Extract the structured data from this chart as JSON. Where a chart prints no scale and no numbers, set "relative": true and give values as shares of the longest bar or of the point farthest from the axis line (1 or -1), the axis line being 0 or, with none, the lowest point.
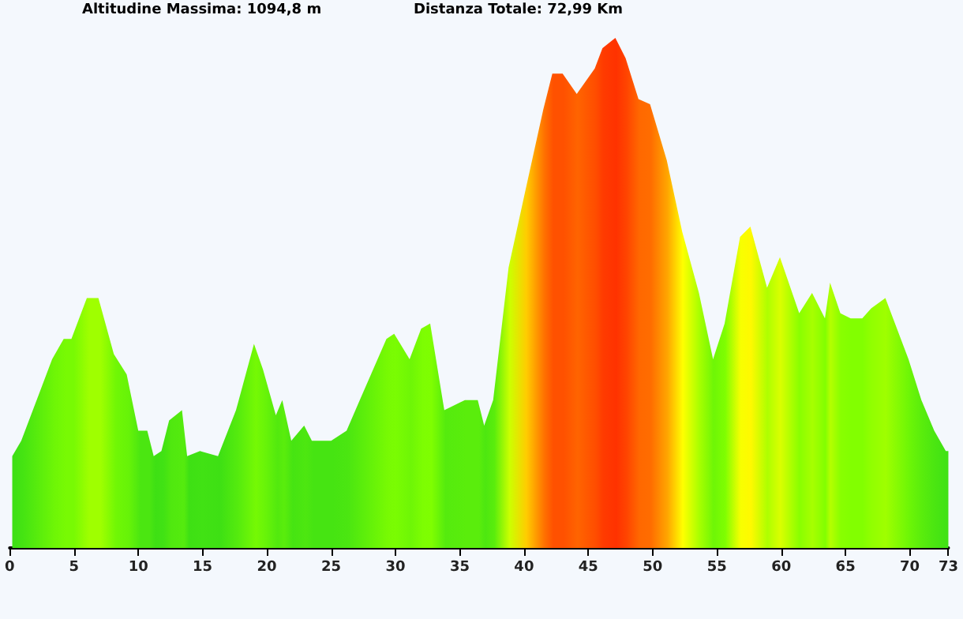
{
  "chart_data": {
    "type": "area",
    "relative": true,
    "annotations": [
      "Altitudine Massima: 1094,8 m",
      "Distanza Totale: 72,99 Km"
    ],
    "x": [
      0.2,
      0.9,
      2.1,
      3.3,
      4.2,
      4.8,
      6.0,
      6.9,
      8.1,
      9.1,
      10.0,
      10.7,
      11.2,
      11.8,
      12.4,
      13.4,
      13.8,
      14.8,
      16.2,
      17.6,
      19.0,
      19.7,
      20.7,
      21.2,
      21.9,
      22.9,
      23.5,
      25.0,
      26.2,
      27.4,
      29.3,
      29.9,
      31.1,
      32.0,
      32.7,
      33.8,
      35.4,
      36.4,
      36.9,
      37.6,
      38.8,
      40.1,
      41.5,
      42.2,
      43.0,
      44.1,
      45.5,
      46.1,
      47.1,
      47.9,
      48.9,
      49.8,
      51.1,
      52.3,
      53.6,
      54.7,
      55.6,
      56.8,
      57.6,
      58.9,
      59.9,
      61.4,
      62.4,
      63.4,
      63.8,
      64.6,
      65.4,
      66.3,
      67.0,
      68.1,
      69.9,
      70.9,
      71.9,
      72.8,
      73.0
    ],
    "series": [
      {
        "values": [
          0.18,
          0.21,
          0.29,
          0.37,
          0.41,
          0.41,
          0.49,
          0.49,
          0.38,
          0.34,
          0.23,
          0.23,
          0.18,
          0.19,
          0.25,
          0.27,
          0.18,
          0.19,
          0.18,
          0.27,
          0.4,
          0.35,
          0.26,
          0.29,
          0.21,
          0.24,
          0.21,
          0.21,
          0.23,
          0.3,
          0.41,
          0.42,
          0.37,
          0.43,
          0.44,
          0.27,
          0.29,
          0.29,
          0.24,
          0.29,
          0.55,
          0.7,
          0.86,
          0.93,
          0.93,
          0.89,
          0.94,
          0.98,
          1.0,
          0.96,
          0.88,
          0.87,
          0.76,
          0.62,
          0.5,
          0.37,
          0.44,
          0.61,
          0.63,
          0.51,
          0.57,
          0.46,
          0.5,
          0.45,
          0.52,
          0.46,
          0.45,
          0.45,
          0.47,
          0.49,
          0.37,
          0.29,
          0.23,
          0.19,
          0.19
        ]
      }
    ],
    "xlim": [
      0,
      73
    ],
    "xticks": [
      0,
      5,
      10,
      15,
      20,
      25,
      30,
      35,
      40,
      45,
      50,
      55,
      60,
      65,
      70,
      73
    ],
    "grid": false
  }
}
